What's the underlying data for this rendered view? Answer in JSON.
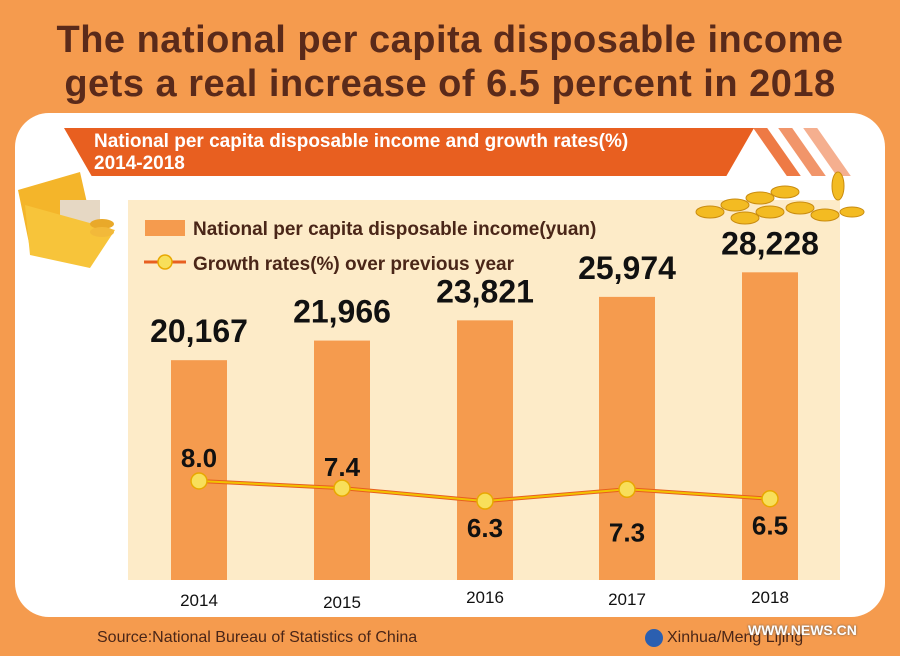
{
  "title_line1": "The national per capita disposable income",
  "title_line2": "gets a real increase of 6.5 percent in 2018",
  "chart_data": {
    "type": "bar+line",
    "title": "National per capita disposable income and growth rates(%)",
    "subtitle": "2014-2018",
    "categories": [
      "2014",
      "2015",
      "2016",
      "2017",
      "2018"
    ],
    "series": [
      {
        "name": "National per capita disposable income(yuan)",
        "type": "bar",
        "values": [
          20167,
          21966,
          23821,
          25974,
          28228
        ],
        "labels": [
          "20,167",
          "21,966",
          "23,821",
          "25,974",
          "28,228"
        ],
        "color": "#F59B4E"
      },
      {
        "name": "Growth rates(%) over previous year",
        "type": "line",
        "values": [
          8.0,
          7.4,
          6.3,
          7.3,
          6.5
        ],
        "labels": [
          "8.0",
          "7.4",
          "6.3",
          "7.3",
          "6.5"
        ],
        "color": "#F2C200"
      }
    ],
    "grid": false,
    "legend": "top-left"
  },
  "source": "Source:National Bureau of Statistics of China",
  "credit": "Xinhua/Meng Lijing",
  "watermark": "WWW.NEWS.CN",
  "colors": {
    "background": "#F59B4E",
    "banner": "#E85F20",
    "plot_bg": "#FDEBC8",
    "text": "#4a2618"
  }
}
